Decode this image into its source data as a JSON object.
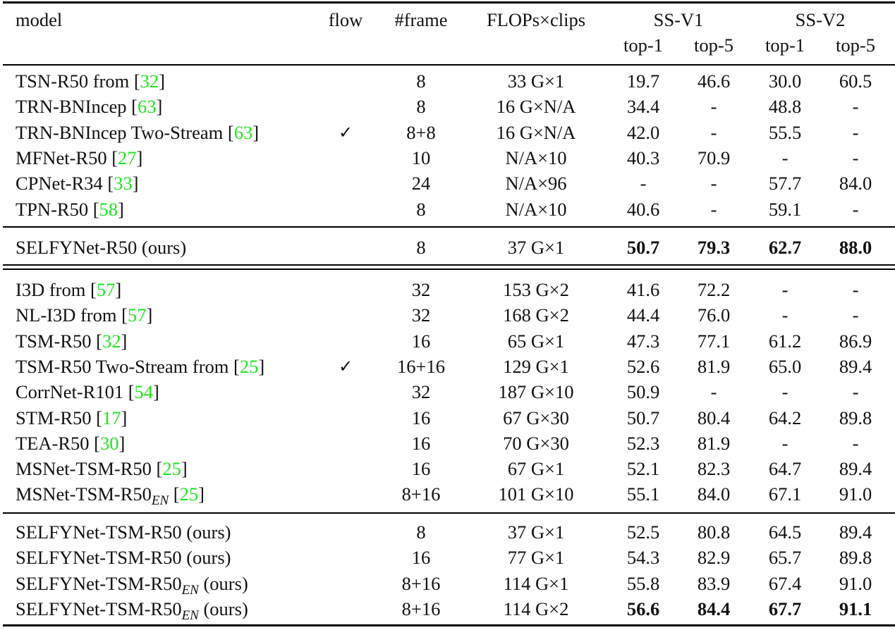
{
  "header": {
    "model": "model",
    "flow": "flow",
    "frame": "#frame",
    "flops": "FLOPs×clips",
    "ssv1": "SS-V1",
    "ssv2": "SS-V2",
    "top1": "top-1",
    "top5": "top-5"
  },
  "groups": [
    [
      {
        "name": "TSN-R50 from ",
        "cite": "32",
        "flow": "",
        "frame": "8",
        "flops": "33 G×1",
        "v1t1": "19.7",
        "v1t5": "46.6",
        "v2t1": "30.0",
        "v2t5": "60.5"
      },
      {
        "name": "TRN-BNIncep ",
        "cite": "63",
        "flow": "",
        "frame": "8",
        "flops": "16 G×N/A",
        "v1t1": "34.4",
        "v1t5": "-",
        "v2t1": "48.8",
        "v2t5": "-"
      },
      {
        "name": "TRN-BNIncep Two-Stream ",
        "cite": "63",
        "flow": "✓",
        "frame": "8+8",
        "flops": "16 G×N/A",
        "v1t1": "42.0",
        "v1t5": "-",
        "v2t1": "55.5",
        "v2t5": "-"
      },
      {
        "name": "MFNet-R50 ",
        "cite": "27",
        "flow": "",
        "frame": "10",
        "flops": "N/A×10",
        "v1t1": "40.3",
        "v1t5": "70.9",
        "v2t1": "-",
        "v2t5": "-"
      },
      {
        "name": "CPNet-R34 ",
        "cite": "33",
        "flow": "",
        "frame": "24",
        "flops": "N/A×96",
        "v1t1": "-",
        "v1t5": "-",
        "v2t1": "57.7",
        "v2t5": "84.0"
      },
      {
        "name": "TPN-R50 ",
        "cite": "58",
        "flow": "",
        "frame": "8",
        "flops": "N/A×10",
        "v1t1": "40.6",
        "v1t5": "-",
        "v2t1": "59.1",
        "v2t5": "-"
      }
    ],
    [
      {
        "name": "SELFYNet-R50 (ours)",
        "flow": "",
        "frame": "8",
        "flops": "37 G×1",
        "v1t1": "50.7",
        "v1t5": "79.3",
        "v2t1": "62.7",
        "v2t5": "88.0",
        "bold": [
          true,
          true,
          true,
          true
        ]
      }
    ],
    [
      {
        "name": "I3D from ",
        "cite": "57",
        "flow": "",
        "frame": "32",
        "flops": "153 G×2",
        "v1t1": "41.6",
        "v1t5": "72.2",
        "v2t1": "-",
        "v2t5": "-"
      },
      {
        "name": "NL-I3D from ",
        "cite": "57",
        "flow": "",
        "frame": "32",
        "flops": "168 G×2",
        "v1t1": "44.4",
        "v1t5": "76.0",
        "v2t1": "-",
        "v2t5": "-"
      },
      {
        "name": "TSM-R50 ",
        "cite": "32",
        "flow": "",
        "frame": "16",
        "flops": "65 G×1",
        "v1t1": "47.3",
        "v1t5": "77.1",
        "v2t1": "61.2",
        "v2t5": "86.9"
      },
      {
        "name": "TSM-R50 Two-Stream from ",
        "cite": "25",
        "flow": "✓",
        "frame": "16+16",
        "flops": "129 G×1",
        "v1t1": "52.6",
        "v1t5": "81.9",
        "v2t1": "65.0",
        "v2t5": "89.4"
      },
      {
        "name": "CorrNet-R101 ",
        "cite": "54",
        "flow": "",
        "frame": "32",
        "flops": "187 G×10",
        "v1t1": "50.9",
        "v1t5": "-",
        "v2t1": "-",
        "v2t5": "-"
      },
      {
        "name": "STM-R50 ",
        "cite": "17",
        "flow": "",
        "frame": "16",
        "flops": "67 G×30",
        "v1t1": "50.7",
        "v1t5": "80.4",
        "v2t1": "64.2",
        "v2t5": "89.8"
      },
      {
        "name": "TEA-R50 ",
        "cite": "30",
        "flow": "",
        "frame": "16",
        "flops": "70 G×30",
        "v1t1": "52.3",
        "v1t5": "81.9",
        "v2t1": "-",
        "v2t5": "-"
      },
      {
        "name": "MSNet-TSM-R50 ",
        "cite": "25",
        "flow": "",
        "frame": "16",
        "flops": "67 G×1",
        "v1t1": "52.1",
        "v1t5": "82.3",
        "v2t1": "64.7",
        "v2t5": "89.4"
      },
      {
        "name": "MSNet-TSM-R50",
        "sub": "EN",
        "tail": " ",
        "cite": "25",
        "flow": "",
        "frame": "8+16",
        "flops": "101 G×10",
        "v1t1": "55.1",
        "v1t5": "84.0",
        "v2t1": "67.1",
        "v2t5": "91.0"
      }
    ],
    [
      {
        "name": "SELFYNet-TSM-R50 (ours)",
        "flow": "",
        "frame": "8",
        "flops": "37 G×1",
        "v1t1": "52.5",
        "v1t5": "80.8",
        "v2t1": "64.5",
        "v2t5": "89.4"
      },
      {
        "name": "SELFYNet-TSM-R50 (ours)",
        "flow": "",
        "frame": "16",
        "flops": "77 G×1",
        "v1t1": "54.3",
        "v1t5": "82.9",
        "v2t1": "65.7",
        "v2t5": "89.8"
      },
      {
        "name": "SELFYNet-TSM-R50",
        "sub": "EN",
        "tail": " (ours)",
        "flow": "",
        "frame": "8+16",
        "flops": "114 G×1",
        "v1t1": "55.8",
        "v1t5": "83.9",
        "v2t1": "67.4",
        "v2t5": "91.0"
      },
      {
        "name": "SELFYNet-TSM-R50",
        "sub": "EN",
        "tail": " (ours)",
        "flow": "",
        "frame": "8+16",
        "flops": "114 G×2",
        "v1t1": "56.6",
        "v1t5": "84.4",
        "v2t1": "67.7",
        "v2t5": "91.1",
        "bold": [
          true,
          true,
          true,
          true
        ]
      }
    ]
  ]
}
